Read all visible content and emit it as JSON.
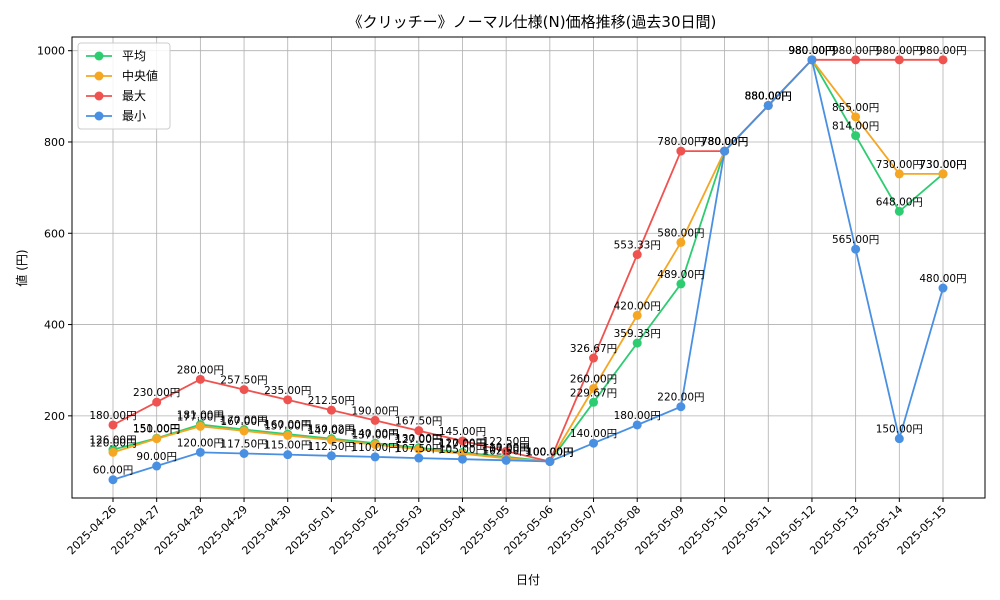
{
  "chart_data": {
    "type": "line",
    "title": "《クリッチー》ノーマル仕様(N)価格推移(過去30日間)",
    "xlabel": "日付",
    "ylabel": "値 (円)",
    "x": [
      "2025-04-26",
      "2025-04-27",
      "2025-04-28",
      "2025-04-29",
      "2025-04-30",
      "2025-05-01",
      "2025-05-02",
      "2025-05-03",
      "2025-05-04",
      "2025-05-05",
      "2025-05-06",
      "2025-05-07",
      "2025-05-08",
      "2025-05-09",
      "2025-05-10",
      "2025-05-11",
      "2025-05-12",
      "2025-05-13",
      "2025-05-14",
      "2025-05-15"
    ],
    "ylim": [
      20,
      1030
    ],
    "yticks": [
      200,
      400,
      600,
      800,
      1000
    ],
    "grid": true,
    "legend_position": "top-left",
    "series": [
      {
        "name": "平均",
        "color": "#2ecc71",
        "values": [
          126.0,
          151.0,
          181.0,
          170.0,
          160.0,
          150.02,
          140.0,
          130.0,
          120.0,
          110.0,
          100.0,
          229.67,
          359.33,
          489.0,
          780.0,
          880.0,
          980.0,
          814.0,
          648.0,
          730.0
        ],
        "labels": [
          "126.00円",
          "151.00円",
          "181.00円",
          "170.00円",
          "160.00円",
          "150.02円",
          "140.00円",
          "130.00円",
          "120.00円",
          "110.00円",
          "100.00円",
          "229.67円",
          "359.33円",
          "489.00円",
          "780.00円",
          "880.00円",
          "980.00円",
          "814.00円",
          "648.00円",
          "730.00円"
        ]
      },
      {
        "name": "中央値",
        "color": "#f5a623",
        "values": [
          120.0,
          150.0,
          177.0,
          167.0,
          157.0,
          147.0,
          137.0,
          127.0,
          117.0,
          107.0,
          100.0,
          260.0,
          420.0,
          580.0,
          780.0,
          880.0,
          980.0,
          855.0,
          730.0,
          730.0
        ],
        "labels": [
          "120.00円",
          "150.00円",
          "177.00円",
          "167.00円",
          "157.00円",
          "147.00円",
          "137.00円",
          "127.00円",
          "117.00円",
          "107.00円",
          "100.00円",
          "260.00円",
          "420.00円",
          "580.00円",
          "780.00円",
          "880.00円",
          "980.00円",
          "855.00円",
          "730.00円",
          "730.00円"
        ]
      },
      {
        "name": "最大",
        "color": "#ef5350",
        "values": [
          180.0,
          230.0,
          280.0,
          257.5,
          235.0,
          212.5,
          190.0,
          167.5,
          145.0,
          122.5,
          100.0,
          326.67,
          553.33,
          780.0,
          780.0,
          880.0,
          980.0,
          980.0,
          980.0,
          980.0
        ],
        "labels": [
          "180.00円",
          "230.00円",
          "280.00円",
          "257.50円",
          "235.00円",
          "212.50円",
          "190.00円",
          "167.50円",
          "145.00円",
          "122.50円",
          "100.00円",
          "326.67円",
          "553.33円",
          "780.00円",
          "780.00円",
          "880.00円",
          "980.00円",
          "980.00円",
          "980.00円",
          "980.00円"
        ]
      },
      {
        "name": "最小",
        "color": "#4a90e2",
        "values": [
          60.0,
          90.0,
          120.0,
          117.5,
          115.0,
          112.5,
          110.0,
          107.5,
          105.0,
          102.5,
          100.0,
          140.0,
          180.0,
          220.0,
          780.0,
          880.0,
          980.0,
          565.0,
          150.0,
          480.0
        ],
        "labels": [
          "60.00円",
          "90.00円",
          "120.00円",
          "117.50円",
          "115.00円",
          "112.50円",
          "110.00円",
          "107.50円",
          "105.00円",
          "102.50円",
          "100.00円",
          "140.00円",
          "180.00円",
          "220.00円",
          "780.00円",
          "880.00円",
          "980.00円",
          "565.00円",
          "150.00円",
          "480.00円"
        ]
      }
    ]
  }
}
